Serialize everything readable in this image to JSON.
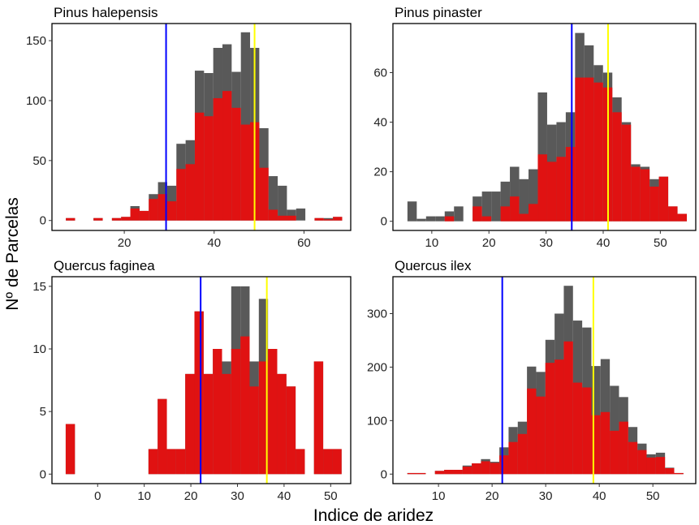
{
  "xlabel": "Indice de aridez",
  "ylabel": "Nº de Parcelas",
  "colors": {
    "total": "#595959",
    "subset": "#e01212",
    "line_blue": "#0000ff",
    "line_yellow": "#ffff00"
  },
  "chart_data": [
    {
      "type": "bar",
      "title": "Pinus halepensis",
      "xlim": [
        3.9,
        70.4
      ],
      "ylim": [
        -8.3,
        164.3
      ],
      "xticks": [
        20,
        40,
        60
      ],
      "yticks": [
        0,
        50,
        100,
        150
      ],
      "bin_start": 7.0,
      "bin_width": 2.05,
      "series": [
        {
          "color": "#595959",
          "values": [
            2,
            0,
            0,
            2,
            0,
            2,
            3,
            12,
            8,
            22,
            32,
            29,
            64,
            67,
            125,
            123,
            144,
            147,
            124,
            157,
            144,
            77,
            37,
            29,
            9,
            10,
            0,
            2,
            2,
            3
          ]
        },
        {
          "color": "#e01212",
          "values": [
            2,
            0,
            0,
            2,
            0,
            2,
            3,
            10,
            8,
            18,
            22,
            16,
            43,
            47,
            90,
            87,
            102,
            108,
            94,
            80,
            82,
            44,
            9,
            4,
            4,
            0,
            0,
            2,
            1,
            3
          ]
        }
      ],
      "vlines": [
        {
          "x": 29.3,
          "color": "#0000ff"
        },
        {
          "x": 49.0,
          "color": "#ffff00"
        }
      ],
      "grid": false
    },
    {
      "type": "bar",
      "title": "Pinus pinaster",
      "xlim": [
        3.2,
        56.2
      ],
      "ylim": [
        -3.7,
        79.8
      ],
      "xticks": [
        10,
        20,
        30,
        40,
        50
      ],
      "yticks": [
        0,
        20,
        40,
        60
      ],
      "bin_start": 5.74,
      "bin_width": 1.63,
      "series": [
        {
          "color": "#595959",
          "values": [
            8,
            1,
            2,
            2,
            4,
            6,
            0,
            10,
            12,
            12,
            16,
            22,
            17,
            21,
            52,
            39,
            40,
            44,
            76,
            71,
            63,
            60,
            50,
            40,
            23,
            22,
            17,
            18,
            6,
            3
          ]
        },
        {
          "color": "#e01212",
          "values": [
            0,
            0,
            0,
            0,
            2,
            0,
            0,
            6,
            2,
            0,
            6,
            10,
            3,
            7,
            27,
            24,
            26,
            30,
            58,
            58,
            56,
            54,
            44,
            39,
            22,
            21,
            14,
            18,
            6,
            3
          ]
        }
      ],
      "vlines": [
        {
          "x": 34.5,
          "color": "#0000ff"
        },
        {
          "x": 40.85,
          "color": "#ffff00"
        }
      ],
      "grid": false
    },
    {
      "type": "bar",
      "title": "Quercus faginea",
      "xlim": [
        -9.8,
        54.3
      ],
      "ylim": [
        -0.76,
        15.77
      ],
      "xticks": [
        0,
        10,
        20,
        30,
        40,
        50
      ],
      "yticks": [
        0,
        5,
        10,
        15
      ],
      "bin_start": -6.85,
      "bin_width": 1.973,
      "series": [
        {
          "color": "#595959",
          "values": [
            4,
            0,
            0,
            0,
            0,
            0,
            0,
            0,
            0,
            2,
            6,
            2,
            2,
            8,
            13,
            8,
            10,
            9,
            15,
            15,
            9,
            14,
            10,
            8,
            7,
            2,
            0,
            9,
            2,
            2
          ]
        },
        {
          "color": "#e01212",
          "values": [
            4,
            0,
            0,
            0,
            0,
            0,
            0,
            0,
            0,
            2,
            6,
            2,
            2,
            8,
            13,
            8,
            10,
            8,
            10,
            11,
            7,
            9,
            10,
            8,
            7,
            2,
            0,
            9,
            2,
            2
          ]
        }
      ],
      "vlines": [
        {
          "x": 22.1,
          "color": "#0000ff"
        },
        {
          "x": 36.3,
          "color": "#ffff00"
        }
      ],
      "grid": false
    },
    {
      "type": "bar",
      "title": "Quercus ilex",
      "xlim": [
        1.5,
        58.0
      ],
      "ylim": [
        -17.8,
        369
      ],
      "xticks": [
        10,
        20,
        30,
        40,
        50
      ],
      "yticks": [
        0,
        100,
        200,
        300
      ],
      "bin_start": 4.19,
      "bin_width": 1.717,
      "series": [
        {
          "color": "#595959",
          "values": [
            2,
            2,
            0,
            6,
            8,
            8,
            16,
            20,
            28,
            23,
            50,
            88,
            98,
            201,
            191,
            251,
            300,
            352,
            287,
            274,
            202,
            215,
            165,
            144,
            88,
            57,
            37,
            40,
            12,
            2
          ]
        },
        {
          "color": "#e01212",
          "values": [
            2,
            2,
            0,
            6,
            8,
            8,
            14,
            20,
            24,
            21,
            35,
            60,
            75,
            160,
            145,
            208,
            214,
            248,
            171,
            162,
            110,
            116,
            81,
            98,
            60,
            45,
            31,
            32,
            11,
            2
          ]
        }
      ],
      "vlines": [
        {
          "x": 21.9,
          "color": "#0000ff"
        },
        {
          "x": 38.9,
          "color": "#ffff00"
        }
      ],
      "grid": false
    }
  ]
}
